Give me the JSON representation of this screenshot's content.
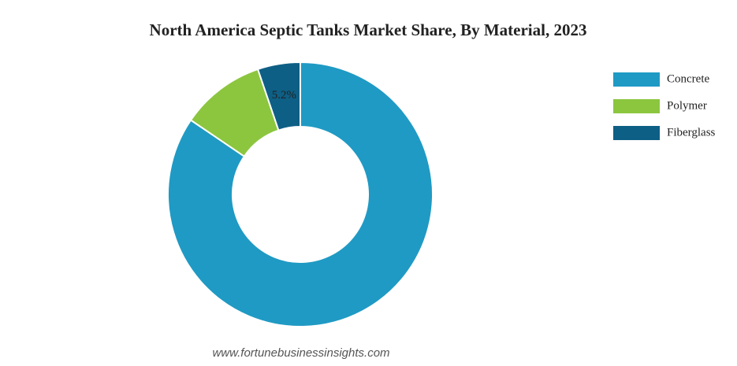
{
  "chart_data": {
    "type": "donut",
    "title": "North America Septic Tanks Market Share, By Material, 2023",
    "categories": [
      "Concrete",
      "Polymer",
      "Fiberglass"
    ],
    "values": [
      84.5,
      10.3,
      5.2
    ],
    "value_labels": [
      null,
      null,
      "5.2%"
    ],
    "colors": [
      "#1f9ac4",
      "#8cc63f",
      "#0e5f85"
    ],
    "legend": "top-right",
    "source": "www.fortunebusinessinsights.com"
  }
}
